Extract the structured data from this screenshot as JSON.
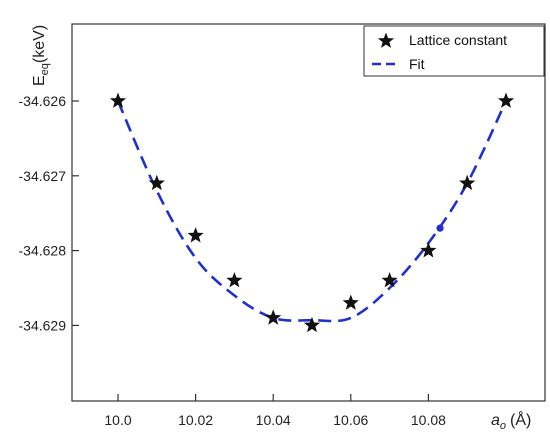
{
  "chart_data": {
    "type": "scatter",
    "title": "",
    "ylabel": {
      "main": "E",
      "sub": "eq",
      "unit": "(keV)"
    },
    "xlabel": {
      "main": "a",
      "sub": "o",
      "unit": "(Å)"
    },
    "xlim": [
      10.0,
      10.1
    ],
    "ylim": [
      -34.63,
      -34.6255
    ],
    "xticks": [
      10.0,
      10.02,
      10.04,
      10.06,
      10.08
    ],
    "xtick_labels": [
      "10.0",
      "10.02",
      "10.04",
      "10.06",
      "10.08"
    ],
    "yticks": [
      -34.626,
      -34.627,
      -34.628,
      -34.629
    ],
    "ytick_labels": [
      "-34.626",
      "-34.627",
      "-34.628",
      "-34.629"
    ],
    "grid": false,
    "legend_position": "top-right",
    "series": [
      {
        "name": "Lattice constant",
        "marker": "star",
        "color": "#111111",
        "x": [
          10.0,
          10.01,
          10.02,
          10.03,
          10.04,
          10.05,
          10.06,
          10.07,
          10.08,
          10.09,
          10.1
        ],
        "y": [
          -34.626,
          -34.6271,
          -34.6278,
          -34.6284,
          -34.6289,
          -34.629,
          -34.6287,
          -34.6284,
          -34.628,
          -34.6271,
          -34.626
        ]
      },
      {
        "name": "Fit",
        "style": "dashed",
        "color": "#1f2fd0",
        "x": [
          10.0,
          10.01,
          10.02,
          10.03,
          10.04,
          10.05,
          10.06,
          10.07,
          10.08,
          10.09,
          10.1
        ],
        "y": [
          -34.626,
          -34.6272,
          -34.6281,
          -34.6286,
          -34.6289,
          -34.62893,
          -34.6289,
          -34.6285,
          -34.6279,
          -34.6271,
          -34.626
        ]
      }
    ],
    "annotations": [
      {
        "type": "dot",
        "x": 10.083,
        "y": -34.6277,
        "color": "#1f2fd0"
      }
    ]
  }
}
